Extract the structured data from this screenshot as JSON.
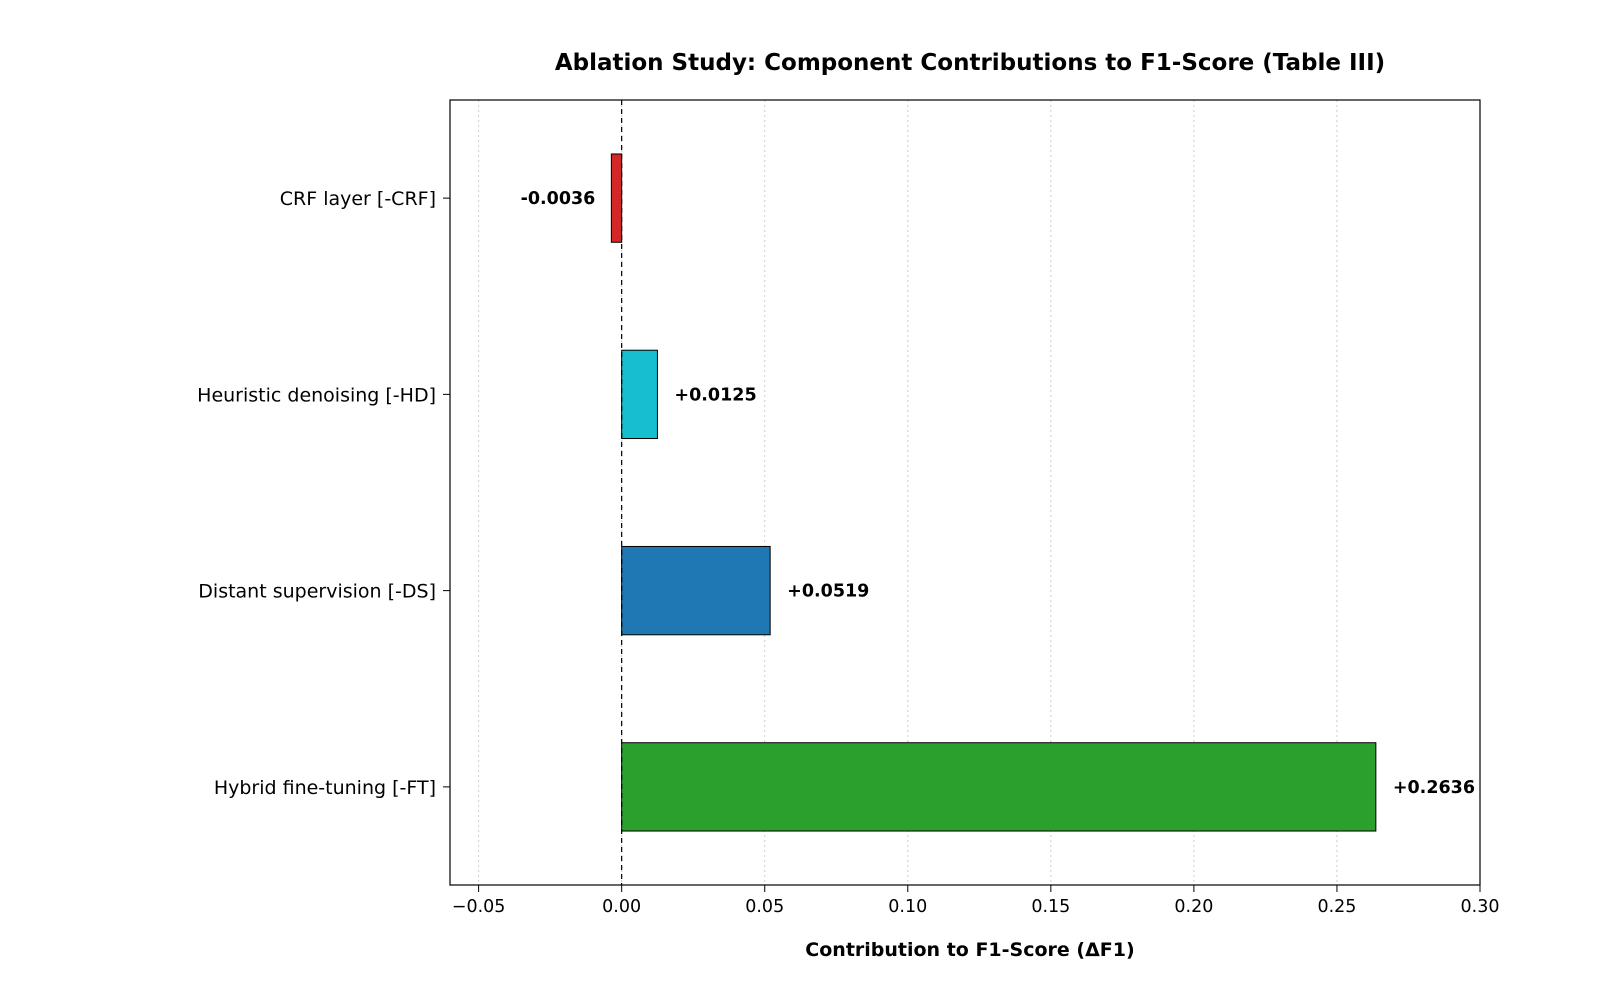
{
  "chart_data": {
    "type": "bar",
    "orientation": "horizontal",
    "title": "Ablation Study: Component Contributions to F1-Score (Table III)",
    "xlabel": "Contribution to F1-Score (ΔF1)",
    "ylabel": "",
    "xlim": [
      -0.06,
      0.3
    ],
    "xticks": [
      -0.05,
      0.0,
      0.05,
      0.1,
      0.15,
      0.2,
      0.25,
      0.3
    ],
    "xtick_labels": [
      "−0.05",
      "0.00",
      "0.05",
      "0.10",
      "0.15",
      "0.20",
      "0.25",
      "0.30"
    ],
    "grid": "x, dotted",
    "zero_line": "dashed",
    "categories": [
      "CRF layer [-CRF]",
      "Heuristic denoising [-HD]",
      "Distant supervision [-DS]",
      "Hybrid fine-tuning [-FT]"
    ],
    "values": [
      -0.0036,
      0.0125,
      0.0519,
      0.2636
    ],
    "value_labels": [
      "-0.0036",
      "+0.0125",
      "+0.0519",
      "+0.2636"
    ],
    "colors": [
      "#d62728",
      "#17becf",
      "#1f77b4",
      "#2ca02c"
    ]
  }
}
